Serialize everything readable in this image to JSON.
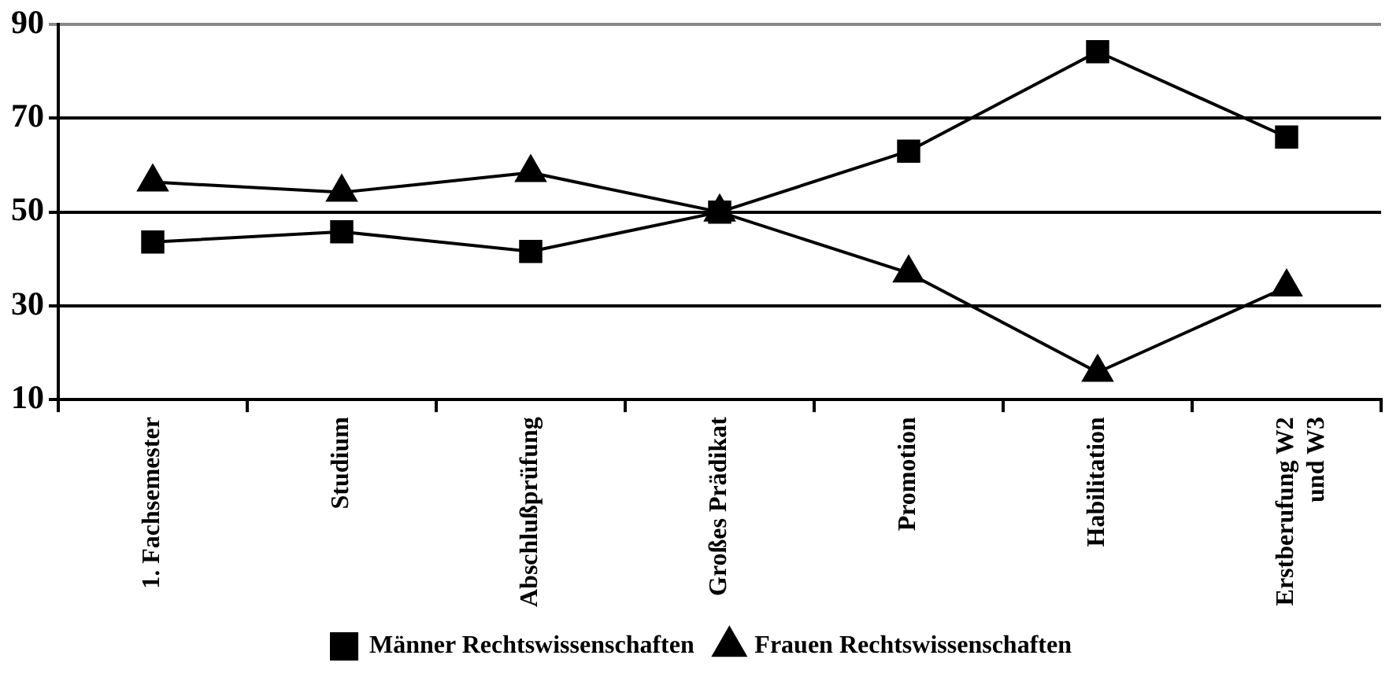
{
  "chart_data": {
    "type": "line",
    "categories": [
      "1. Fachsemester",
      "Studium",
      "Abschlußprüfung",
      "Großes Prädikat",
      "Promotion",
      "Habilitation",
      "Erstberufung W2 und W3"
    ],
    "series": [
      {
        "name": "Männer Rechtswissenschaften",
        "color": "#000000",
        "marker": "square",
        "values": [
          43.6,
          45.8,
          41.6,
          50,
          63,
          84.2,
          66
        ]
      },
      {
        "name": "Frauen Rechtswissenschaften",
        "color": "#000000",
        "marker": "triangle",
        "values": [
          56.4,
          54.2,
          58.4,
          50,
          37,
          15.8,
          34
        ]
      }
    ],
    "ylim": [
      10,
      90
    ],
    "yticks": [
      10,
      30,
      50,
      70,
      90
    ],
    "grid": "y",
    "legend": "bottom",
    "line_style": "solid"
  }
}
